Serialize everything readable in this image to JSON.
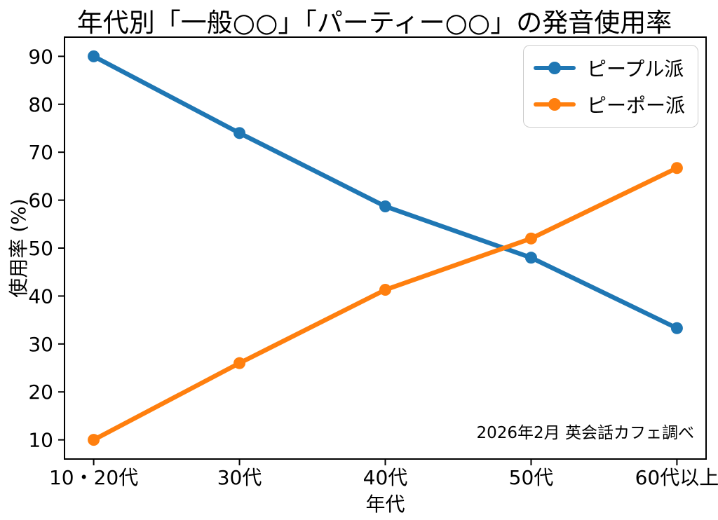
{
  "chart_data": {
    "type": "line",
    "title": "年代別「一般○○」「パーティー○○」の発音使用率",
    "xlabel": "年代",
    "ylabel": "使用率 (%)",
    "categories": [
      "10・20代",
      "30代",
      "40代",
      "50代",
      "60代以上"
    ],
    "series": [
      {
        "name": "ピープル派",
        "color": "#1f77b4",
        "values": [
          90.0,
          74.0,
          58.7,
          48.0,
          33.3
        ]
      },
      {
        "name": "ピーポー派",
        "color": "#ff7f0e",
        "values": [
          10.0,
          26.0,
          41.3,
          52.0,
          66.7
        ]
      }
    ],
    "yticks": [
      10,
      20,
      30,
      40,
      50,
      60,
      70,
      80,
      90
    ],
    "ylim": [
      6,
      94
    ],
    "xlim": [
      -0.2,
      4.2
    ],
    "grid": false,
    "legend_position": "upper right",
    "annotation": "2026年2月 英会話カフェ調べ",
    "axis_color": "#000000"
  }
}
